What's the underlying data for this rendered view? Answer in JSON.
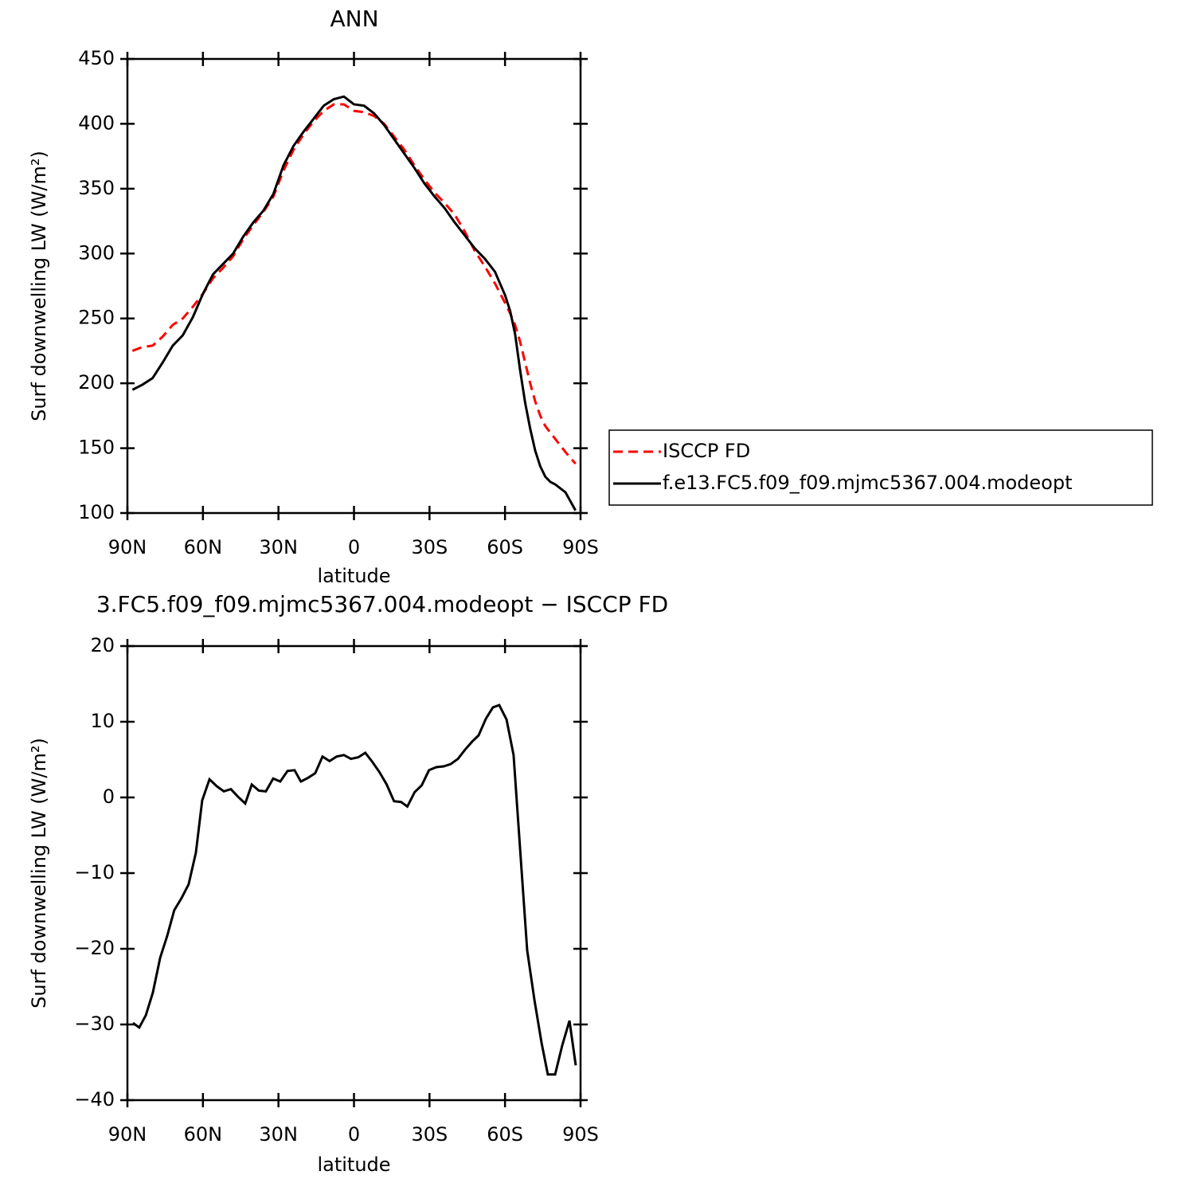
{
  "chart_data": [
    {
      "type": "line",
      "title": "ANN",
      "xlabel": "latitude",
      "ylabel": "Surf downwelling LW (W/m²)",
      "x": [
        88,
        84,
        80,
        76,
        72,
        68,
        64,
        60,
        56,
        52,
        48,
        44,
        40,
        36,
        32,
        28,
        24,
        20,
        16,
        12,
        8,
        4,
        0,
        -4,
        -8,
        -12,
        -16,
        -20,
        -24,
        -28,
        -32,
        -36,
        -40,
        -44,
        -48,
        -52,
        -56,
        -60,
        -62,
        -64,
        -66,
        -68,
        -70,
        -72,
        -74,
        -76,
        -78,
        -80,
        -84,
        -88
      ],
      "xlim": [
        90,
        -90
      ],
      "xticks": [
        {
          "value": 90,
          "label": "90N"
        },
        {
          "value": 60,
          "label": "60N"
        },
        {
          "value": 30,
          "label": "30N"
        },
        0,
        {
          "value": -30,
          "label": "30S"
        },
        {
          "value": -60,
          "label": "60S"
        },
        {
          "value": -90,
          "label": "90S"
        }
      ],
      "ylim": [
        100,
        450
      ],
      "yticks": [
        100,
        150,
        200,
        250,
        300,
        350,
        400,
        450
      ],
      "legend": "right",
      "series": [
        {
          "name": "ISCCP FD",
          "color": "#ff0000",
          "line_style": "dashed",
          "values": [
            225,
            228,
            229,
            236,
            245,
            250,
            259,
            269,
            281,
            289,
            298,
            311,
            322,
            332,
            344,
            364,
            380,
            392,
            402,
            410,
            415,
            415,
            410,
            409,
            406,
            400,
            390,
            380,
            368,
            357,
            347,
            339,
            330,
            317,
            302,
            290,
            277,
            262,
            254,
            245,
            232,
            216,
            200,
            186,
            175,
            167,
            162,
            157,
            147,
            138
          ]
        },
        {
          "name": "f.e13.FC5.f09_f09.mjmc5367.004.modeopt",
          "color": "#000000",
          "line_style": "solid",
          "values": [
            195,
            199,
            204,
            216,
            229,
            237,
            251,
            269,
            284,
            292,
            300,
            313,
            324,
            333,
            346,
            368,
            383,
            394,
            404,
            414,
            419,
            421,
            415,
            414,
            408,
            399,
            388,
            377,
            366,
            354,
            344,
            335,
            324,
            314,
            304,
            296,
            286,
            268,
            256,
            238,
            210,
            185,
            165,
            148,
            136,
            128,
            124,
            122,
            116,
            102
          ]
        }
      ]
    },
    {
      "type": "line",
      "title": "3.FC5.f09_f09.mjmc5367.004.modeopt − ISCCP FD",
      "xlabel": "latitude",
      "ylabel": "Surf downwelling LW (W/m²)",
      "x": [
        87.8,
        85.3,
        82.7,
        79.9,
        77.0,
        74.2,
        71.4,
        68.5,
        65.7,
        62.8,
        60.3,
        57.4,
        54.6,
        51.7,
        48.9,
        46.1,
        43.2,
        40.6,
        37.8,
        35.0,
        32.1,
        29.3,
        26.4,
        23.6,
        21.1,
        18.2,
        15.4,
        12.5,
        9.7,
        6.9,
        4.0,
        1.2,
        -1.7,
        -4.5,
        -7.3,
        -10.2,
        -13.0,
        -15.9,
        -18.7,
        -21.2,
        -24.1,
        -26.9,
        -29.8,
        -32.7,
        -35.6,
        -38.4,
        -41.3,
        -44.1,
        -47.0,
        -49.5,
        -52.4,
        -55.2,
        -57.7,
        -60.6,
        -63.4,
        -66.3,
        -68.8,
        -71.7,
        -74.5,
        -77.0,
        -79.9,
        -82.7,
        -85.6,
        -88.1
      ],
      "xlim": [
        90,
        -90
      ],
      "xticks": [
        {
          "value": 90,
          "label": "90N"
        },
        {
          "value": 60,
          "label": "60N"
        },
        {
          "value": 30,
          "label": "30N"
        },
        0,
        {
          "value": -30,
          "label": "30S"
        },
        {
          "value": -60,
          "label": "60S"
        },
        {
          "value": -90,
          "label": "90S"
        }
      ],
      "ylim": [
        -40,
        20
      ],
      "yticks": [
        -40,
        -30,
        -20,
        -10,
        0,
        10,
        20
      ],
      "series": [
        {
          "color": "#000000",
          "line_style": "solid",
          "values": [
            -29.8,
            -30.4,
            -28.8,
            -25.8,
            -21.2,
            -18.3,
            -14.9,
            -13.3,
            -11.5,
            -7.3,
            -0.4,
            2.4,
            1.5,
            0.8,
            1.1,
            0.1,
            -0.8,
            1.7,
            0.9,
            0.8,
            2.5,
            2.1,
            3.5,
            3.6,
            2.1,
            2.6,
            3.2,
            5.4,
            4.8,
            5.4,
            5.6,
            5.1,
            5.3,
            5.9,
            4.7,
            3.3,
            1.7,
            -0.5,
            -0.6,
            -1.2,
            0.7,
            1.6,
            3.6,
            4.0,
            4.1,
            4.4,
            5.1,
            6.3,
            7.4,
            8.2,
            10.4,
            11.9,
            12.2,
            10.3,
            5.6,
            -8.3,
            -20.2,
            -26.8,
            -32.4,
            -36.6,
            -36.6,
            -32.8,
            -29.5,
            -35.4
          ]
        }
      ]
    }
  ]
}
